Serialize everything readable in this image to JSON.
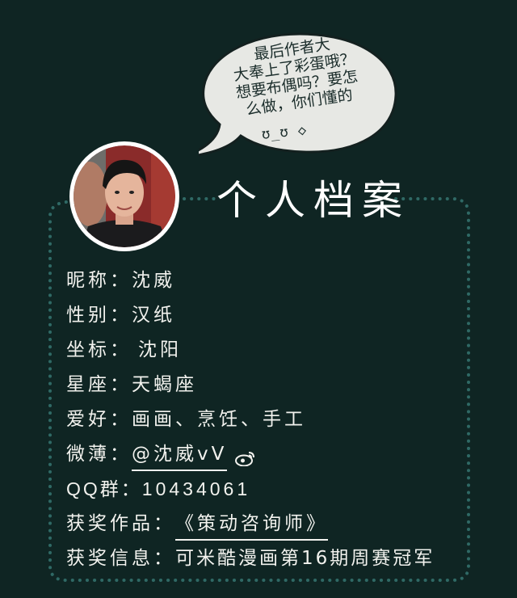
{
  "bubble": {
    "lines": [
      "最后作者大",
      "大奉上了彩蛋哦？",
      "想要布偶吗？要怎",
      "么做，你们懂的"
    ],
    "face": "ʊ_ʊ ◇"
  },
  "title": "个人档案",
  "colors": {
    "background": "#0f2523",
    "bubble": "#e7e8e4",
    "dots": "#2f6965",
    "text": "#f2f2ee"
  },
  "profile": {
    "nickname": {
      "label": "昵称：",
      "value": "沈威"
    },
    "gender": {
      "label": "性别：",
      "value": "汉纸"
    },
    "location": {
      "label": "坐标：",
      "value": "沈阳"
    },
    "sign": {
      "label": "星座：",
      "value": "天蝎座"
    },
    "hobby": {
      "label": "爱好：",
      "value": "画画、烹饪、手工"
    },
    "weibo": {
      "label": "微薄：",
      "value": "@沈威vV",
      "icon": "weibo-icon"
    },
    "qq": {
      "label": "QQ群：",
      "value": "10434061"
    },
    "work": {
      "label": "获奖作品：",
      "value": "《策动咨询师》"
    },
    "award": {
      "label": "获奖信息：",
      "value": "可米酷漫画第16期周赛冠军"
    }
  }
}
